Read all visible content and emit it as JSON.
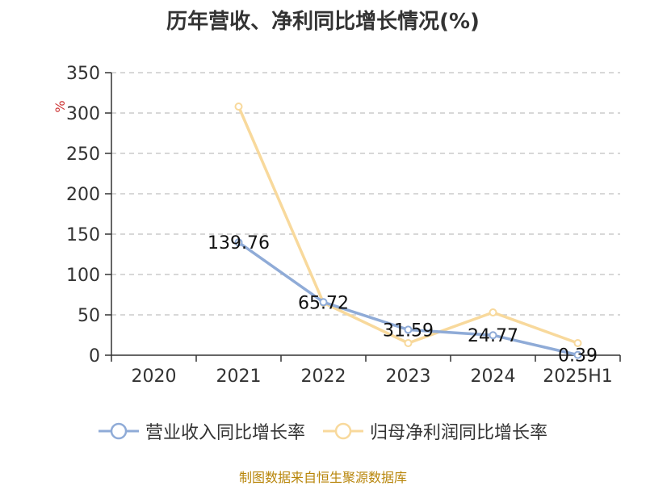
{
  "chart_data": {
    "type": "line",
    "title": "历年营收、净利同比增长情况(%)",
    "ylabel": "%",
    "categories": [
      "2020",
      "2021",
      "2022",
      "2023",
      "2024",
      "2025H1"
    ],
    "ylim": [
      0,
      350
    ],
    "yticks": [
      0,
      50,
      100,
      150,
      200,
      250,
      300,
      350
    ],
    "grid": true,
    "legend_position": "bottom",
    "series": [
      {
        "name": "营业收入同比增长率",
        "color": "#8fabd7",
        "values": [
          null,
          139.76,
          65.72,
          31.59,
          24.77,
          0.39
        ],
        "labels": [
          "",
          "139.76",
          "65.72",
          "31.59",
          "24.77",
          "0.39"
        ]
      },
      {
        "name": "归母净利润同比增长率",
        "color": "#f8d99c",
        "values": [
          null,
          308,
          65,
          15,
          53,
          15
        ],
        "labels": []
      }
    ]
  },
  "source_note": "制图数据来自恒生聚源数据库"
}
